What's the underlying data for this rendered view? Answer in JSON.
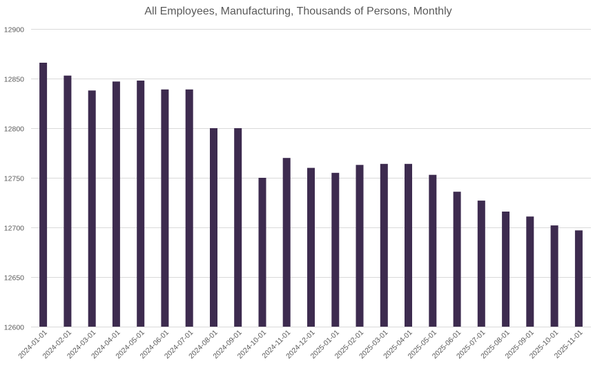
{
  "chart_data": {
    "type": "bar",
    "title": "All Employees, Manufacturing, Thousands of Persons, Monthly",
    "xlabel": "",
    "ylabel": "",
    "ylim": [
      12600,
      12900
    ],
    "yticks": [
      "12600",
      "12650",
      "12700",
      "12750",
      "12800",
      "12850",
      "12900"
    ],
    "grid": true,
    "legend": "none",
    "bar_color": "#3d2b4f",
    "categories": [
      "2024-01-01",
      "2024-02-01",
      "2024-03-01",
      "2024-04-01",
      "2024-05-01",
      "2024-06-01",
      "2024-07-01",
      "2024-08-01",
      "2024-09-01",
      "2024-10-01",
      "2024-11-01",
      "2024-12-01",
      "2025-01-01",
      "2025-02-01",
      "2025-03-01",
      "2025-04-01",
      "2025-05-01",
      "2025-06-01",
      "2025-07-01",
      "2025-08-01",
      "2025-09-01",
      "2025-10-01",
      "2025-11-01"
    ],
    "values": [
      12866,
      12853,
      12838,
      12847,
      12848,
      12839,
      12839,
      12800,
      12800,
      12750,
      12770,
      12760,
      12755,
      12763,
      12764,
      12764,
      12753,
      12736,
      12727,
      12716,
      12711,
      12702,
      12697
    ]
  }
}
